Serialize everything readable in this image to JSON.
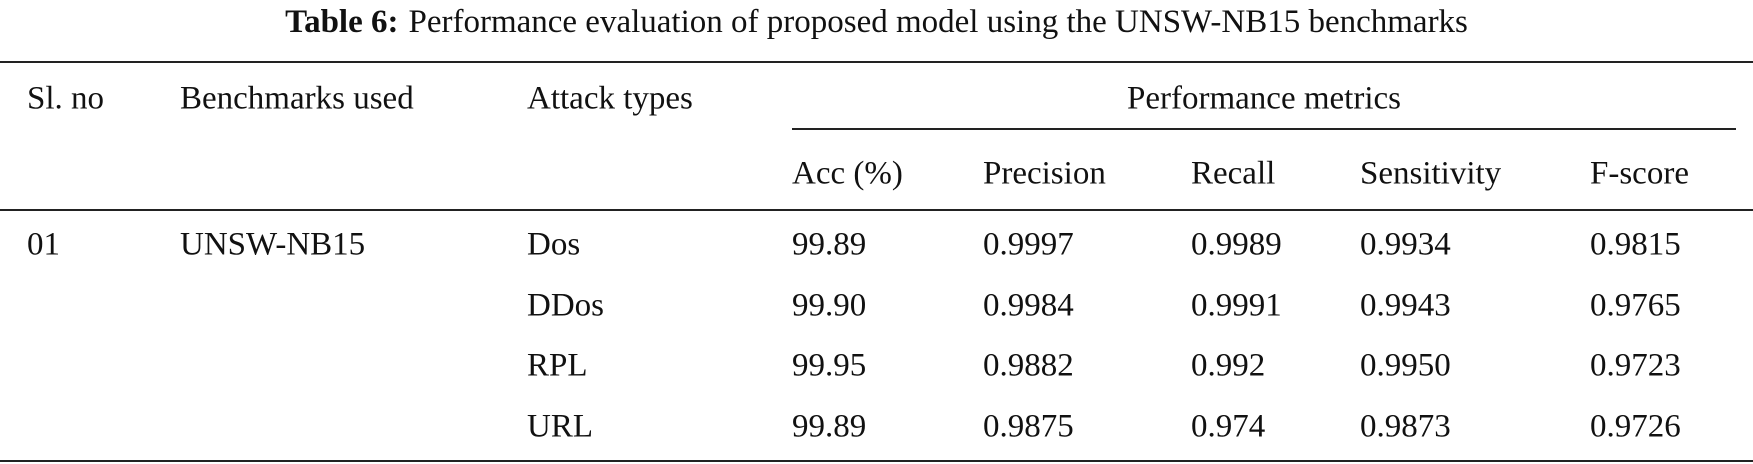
{
  "caption": {
    "label": "Table 6:",
    "text": "Performance evaluation of proposed model using the UNSW-NB15 benchmarks"
  },
  "table": {
    "headers": {
      "sl_no": "Sl. no",
      "benchmark": "Benchmarks used",
      "attack": "Attack types",
      "group": "Performance metrics",
      "metrics": [
        "Acc (%)",
        "Precision",
        "Recall",
        "Sensitivity",
        "F-score"
      ]
    },
    "groups": [
      {
        "sl_no": "01",
        "benchmark": "UNSW-NB15",
        "attacks": [
          {
            "type": "Dos",
            "metrics": [
              "99.89",
              "0.9997",
              "0.9989",
              "0.9934",
              "0.9815"
            ]
          },
          {
            "type": "DDos",
            "metrics": [
              "99.90",
              "0.9984",
              "0.9991",
              "0.9943",
              "0.9765"
            ]
          },
          {
            "type": "RPL",
            "metrics": [
              "99.95",
              "0.9882",
              "0.992",
              "0.9950",
              "0.9723"
            ]
          },
          {
            "type": "URL",
            "metrics": [
              "99.89",
              "0.9875",
              "0.974",
              "0.9873",
              "0.9726"
            ]
          }
        ]
      }
    ]
  }
}
